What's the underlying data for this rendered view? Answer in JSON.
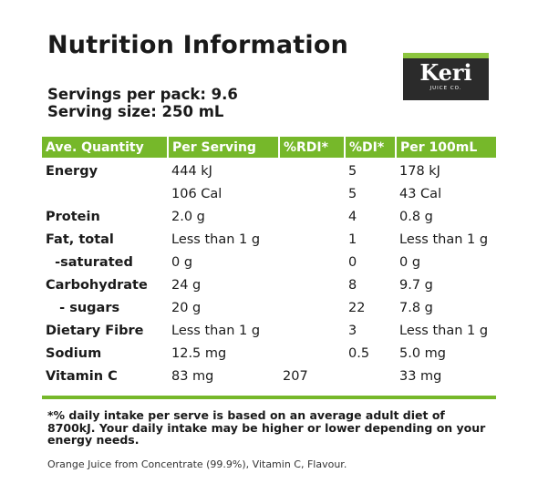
{
  "title": "Nutrition Information",
  "servings_per_pack": "Servings per pack: 9.6",
  "serving_size": "Serving size: 250 mL",
  "brand": {
    "name": "Keri",
    "tagline": "JUICE CO."
  },
  "table": {
    "headers": [
      "Ave. Quantity",
      "Per Serving",
      "%RDI*",
      "%DI*",
      "Per 100mL"
    ],
    "rows": [
      [
        "Energy",
        "444 kJ",
        "",
        "5",
        "178 kJ"
      ],
      [
        "",
        "106 Cal",
        "",
        "5",
        "43 Cal"
      ],
      [
        "Protein",
        "2.0 g",
        "",
        "4",
        "0.8 g"
      ],
      [
        "Fat, total",
        "Less than 1 g",
        "",
        "1",
        "Less than 1 g"
      ],
      [
        "  -saturated",
        "0 g",
        "",
        "0",
        "0 g"
      ],
      [
        "Carbohydrate",
        "24 g",
        "",
        "8",
        "9.7 g"
      ],
      [
        "   - sugars",
        "20 g",
        "",
        "22",
        "7.8 g"
      ],
      [
        "Dietary Fibre",
        "Less than 1 g",
        "",
        "3",
        "Less than 1 g"
      ],
      [
        "Sodium",
        "12.5 mg",
        "",
        "0.5",
        "5.0 mg"
      ],
      [
        "Vitamin C",
        "83 mg",
        "207",
        "",
        "33 mg"
      ]
    ]
  },
  "footnote": "*% daily intake per serve is based on an average adult diet of 8700kJ. Your daily intake may be higher or lower depending on your energy needs.",
  "ingredients": "Orange Juice from Concentrate (99.9%), Vitamin C, Flavour.",
  "colors": {
    "accent_green": "#76b82a",
    "logo_background": "#2b2b2b"
  }
}
